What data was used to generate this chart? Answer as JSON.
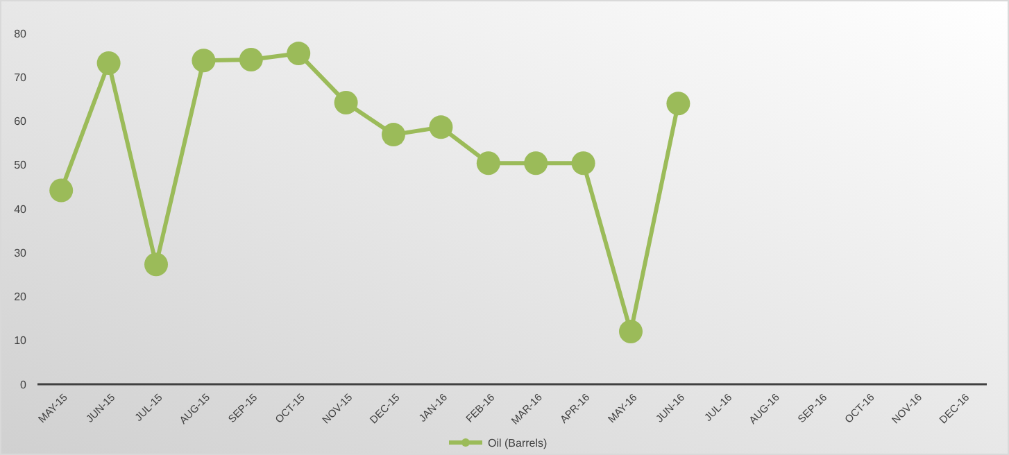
{
  "chart_data": {
    "type": "line",
    "categories": [
      "MAY-15",
      "JUN-15",
      "JUL-15",
      "AUG-15",
      "SEP-15",
      "OCT-15",
      "NOV-15",
      "DEC-15",
      "JAN-16",
      "FEB-16",
      "MAR-16",
      "APR-16",
      "MAY-16",
      "JUN-16",
      "JUL-16",
      "AUG-16",
      "SEP-16",
      "OCT-16",
      "NOV-16",
      "DEC-16"
    ],
    "series": [
      {
        "name": "Oil (Barrels)",
        "color": "#9bbb59",
        "values": [
          44.2,
          73.2,
          27.3,
          73.8,
          74,
          75.4,
          64.2,
          56.9,
          58.6,
          50.4,
          50.4,
          50.4,
          12,
          64,
          null,
          null,
          null,
          null,
          null,
          null
        ]
      }
    ],
    "ylim": [
      0,
      80
    ],
    "yticks": [
      0,
      10,
      20,
      30,
      40,
      50,
      60,
      70,
      80
    ],
    "grid": false,
    "legend": "bottom",
    "marker": "circle",
    "line_style": "solid"
  }
}
